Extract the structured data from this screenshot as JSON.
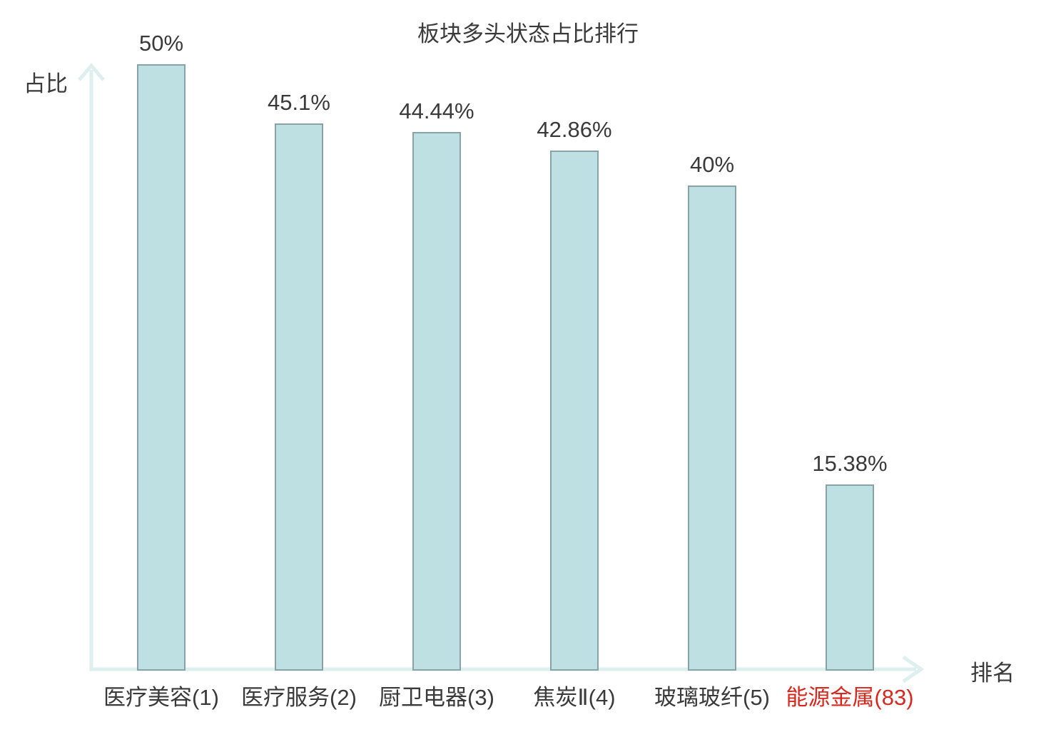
{
  "chart_data": {
    "type": "bar",
    "title": "板块多头状态占比排行",
    "ylabel": "占比",
    "xlabel": "排名",
    "categories": [
      "医疗美容(1)",
      "医疗服务(2)",
      "厨卫电器(3)",
      "焦炭Ⅱ(4)",
      "玻璃玻纤(5)",
      "能源金属(83)"
    ],
    "values": [
      50,
      45.1,
      44.44,
      42.86,
      40,
      15.38
    ],
    "value_labels": [
      "50%",
      "45.1%",
      "44.44%",
      "42.86%",
      "40%",
      "15.38%"
    ],
    "highlighted_category_index": 5,
    "ylim": [
      0,
      53
    ],
    "grid": false,
    "legend": null,
    "colors": {
      "bar_fill": "#bfe0e2",
      "bar_border": "#87a2a8",
      "axis": "#ddefee",
      "text": "#3a3a3a",
      "highlight": "#d8281e",
      "background": "#ffffff"
    }
  }
}
